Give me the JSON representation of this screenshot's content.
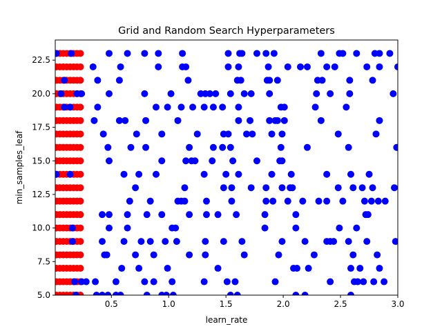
{
  "chart_data": {
    "type": "scatter",
    "title": "Grid and Random Search Hyperparameters",
    "xlabel": "learn_rate",
    "ylabel": "min_samples_leaf",
    "xlim": [
      0.01,
      3.0
    ],
    "ylim": [
      5,
      24
    ],
    "xticks": [
      0.5,
      1.0,
      1.5,
      2.0,
      2.5,
      3.0
    ],
    "xtick_labels": [
      "0.5",
      "1.0",
      "1.5",
      "2.0",
      "2.5",
      "3.0"
    ],
    "yticks": [
      5.0,
      7.5,
      10.0,
      12.5,
      15.0,
      17.5,
      20.0,
      22.5
    ],
    "ytick_labels": [
      "5.0",
      "7.5",
      "10.0",
      "12.5",
      "15.0",
      "17.5",
      "20.0",
      "22.5"
    ],
    "grid": false,
    "legend": "none",
    "series": [
      {
        "color": "#ff0000",
        "grid_x": [
          0.02,
          0.05,
          0.08,
          0.11,
          0.14,
          0.17,
          0.2,
          0.23
        ],
        "grid_y": [
          5,
          6,
          7,
          8,
          9,
          10,
          11,
          12,
          13,
          14,
          15,
          16,
          17,
          18,
          19,
          20,
          21,
          22,
          23
        ]
      },
      {
        "color": "#0000ff",
        "points": [
          [
            0.02,
            23
          ],
          [
            0.15,
            23
          ],
          [
            0.48,
            23
          ],
          [
            0.64,
            23
          ],
          [
            0.79,
            23
          ],
          [
            0.91,
            23
          ],
          [
            1.12,
            23
          ],
          [
            1.52,
            23
          ],
          [
            1.62,
            23
          ],
          [
            1.64,
            23
          ],
          [
            1.77,
            23
          ],
          [
            1.85,
            23
          ],
          [
            1.92,
            23
          ],
          [
            2.33,
            23
          ],
          [
            2.49,
            23
          ],
          [
            2.52,
            23
          ],
          [
            2.64,
            23
          ],
          [
            2.8,
            23
          ],
          [
            2.84,
            23
          ],
          [
            2.93,
            23
          ],
          [
            0.34,
            22
          ],
          [
            0.58,
            22
          ],
          [
            0.91,
            22
          ],
          [
            1.12,
            22
          ],
          [
            1.15,
            22
          ],
          [
            1.52,
            22
          ],
          [
            1.61,
            22
          ],
          [
            1.87,
            22
          ],
          [
            2.04,
            22
          ],
          [
            2.15,
            22
          ],
          [
            2.21,
            22
          ],
          [
            2.38,
            22
          ],
          [
            2.45,
            22
          ],
          [
            2.73,
            22
          ],
          [
            2.84,
            22
          ],
          [
            3.0,
            22
          ],
          [
            0.09,
            21
          ],
          [
            0.38,
            21
          ],
          [
            0.57,
            21
          ],
          [
            1.17,
            21
          ],
          [
            1.6,
            21
          ],
          [
            1.63,
            21
          ],
          [
            1.86,
            21
          ],
          [
            1.88,
            21
          ],
          [
            1.95,
            21
          ],
          [
            2.3,
            21
          ],
          [
            2.34,
            21
          ],
          [
            2.58,
            21
          ],
          [
            2.78,
            21
          ],
          [
            0.06,
            20
          ],
          [
            0.2,
            20
          ],
          [
            0.24,
            20
          ],
          [
            0.48,
            20
          ],
          [
            0.79,
            20
          ],
          [
            1.02,
            20
          ],
          [
            1.28,
            20
          ],
          [
            1.32,
            20
          ],
          [
            1.36,
            20
          ],
          [
            1.41,
            20
          ],
          [
            1.54,
            20
          ],
          [
            1.66,
            20
          ],
          [
            1.72,
            20
          ],
          [
            1.88,
            20
          ],
          [
            2.29,
            20
          ],
          [
            2.41,
            20
          ],
          [
            2.58,
            20
          ],
          [
            2.96,
            20
          ],
          [
            0.09,
            19
          ],
          [
            0.14,
            19
          ],
          [
            0.38,
            19
          ],
          [
            0.89,
            19
          ],
          [
            0.99,
            19
          ],
          [
            1.11,
            19
          ],
          [
            1.21,
            19
          ],
          [
            1.31,
            19
          ],
          [
            1.39,
            19
          ],
          [
            1.47,
            19
          ],
          [
            1.61,
            19
          ],
          [
            1.98,
            19
          ],
          [
            2.01,
            19
          ],
          [
            2.28,
            19
          ],
          [
            2.55,
            19
          ],
          [
            0.35,
            18
          ],
          [
            0.57,
            18
          ],
          [
            0.62,
            18
          ],
          [
            0.8,
            18
          ],
          [
            1.08,
            18
          ],
          [
            1.61,
            18
          ],
          [
            1.71,
            18
          ],
          [
            1.88,
            18
          ],
          [
            1.93,
            18
          ],
          [
            1.95,
            18
          ],
          [
            2.01,
            18
          ],
          [
            2.33,
            18
          ],
          [
            2.84,
            18
          ],
          [
            0.43,
            17
          ],
          [
            0.72,
            17
          ],
          [
            0.94,
            17
          ],
          [
            1.25,
            17
          ],
          [
            1.48,
            17
          ],
          [
            1.52,
            17
          ],
          [
            1.68,
            17
          ],
          [
            1.73,
            17
          ],
          [
            1.9,
            17
          ],
          [
            1.99,
            17
          ],
          [
            2.48,
            17
          ],
          [
            2.81,
            17
          ],
          [
            0.47,
            16
          ],
          [
            0.67,
            16
          ],
          [
            0.8,
            16
          ],
          [
            1.18,
            16
          ],
          [
            1.39,
            16
          ],
          [
            1.47,
            16
          ],
          [
            1.54,
            16
          ],
          [
            1.98,
            16
          ],
          [
            2.21,
            16
          ],
          [
            2.57,
            16
          ],
          [
            2.99,
            16
          ],
          [
            0.48,
            15
          ],
          [
            0.94,
            15
          ],
          [
            1.15,
            15
          ],
          [
            1.2,
            15
          ],
          [
            1.23,
            15
          ],
          [
            1.38,
            15
          ],
          [
            1.56,
            15
          ],
          [
            1.77,
            15
          ],
          [
            1.97,
            15
          ],
          [
            1.99,
            15
          ],
          [
            0.02,
            14
          ],
          [
            0.14,
            14
          ],
          [
            0.61,
            14
          ],
          [
            0.74,
            14
          ],
          [
            0.89,
            14
          ],
          [
            1.31,
            14
          ],
          [
            1.5,
            14
          ],
          [
            1.61,
            14
          ],
          [
            1.9,
            14
          ],
          [
            2.07,
            14
          ],
          [
            2.38,
            14
          ],
          [
            2.59,
            14
          ],
          [
            2.75,
            14
          ],
          [
            0.71,
            13
          ],
          [
            1.14,
            13
          ],
          [
            1.48,
            13
          ],
          [
            1.55,
            13
          ],
          [
            1.72,
            13
          ],
          [
            1.85,
            13
          ],
          [
            1.99,
            13
          ],
          [
            2.06,
            13
          ],
          [
            2.08,
            13
          ],
          [
            2.48,
            13
          ],
          [
            2.61,
            13
          ],
          [
            2.69,
            13
          ],
          [
            2.78,
            13
          ],
          [
            2.97,
            13
          ],
          [
            0.66,
            12
          ],
          [
            0.84,
            12
          ],
          [
            1.08,
            12
          ],
          [
            1.11,
            12
          ],
          [
            1.14,
            12
          ],
          [
            1.33,
            12
          ],
          [
            1.55,
            12
          ],
          [
            1.85,
            12
          ],
          [
            1.91,
            12
          ],
          [
            2.04,
            12
          ],
          [
            2.17,
            12
          ],
          [
            2.31,
            12
          ],
          [
            2.38,
            12
          ],
          [
            2.52,
            12
          ],
          [
            2.71,
            12
          ],
          [
            2.77,
            12
          ],
          [
            2.83,
            12
          ],
          [
            2.89,
            12
          ],
          [
            0.42,
            11
          ],
          [
            0.48,
            11
          ],
          [
            0.64,
            11
          ],
          [
            0.81,
            11
          ],
          [
            0.94,
            11
          ],
          [
            1.18,
            11
          ],
          [
            1.33,
            11
          ],
          [
            1.43,
            11
          ],
          [
            1.59,
            11
          ],
          [
            1.84,
            11
          ],
          [
            2.11,
            11
          ],
          [
            2.72,
            11
          ],
          [
            2.74,
            11
          ],
          [
            0.16,
            10
          ],
          [
            0.48,
            10
          ],
          [
            0.64,
            10
          ],
          [
            1.03,
            10
          ],
          [
            1.06,
            10
          ],
          [
            1.84,
            10
          ],
          [
            2.11,
            10
          ],
          [
            2.49,
            10
          ],
          [
            2.64,
            10
          ],
          [
            0.16,
            9
          ],
          [
            0.42,
            9
          ],
          [
            0.61,
            9
          ],
          [
            0.76,
            9
          ],
          [
            0.84,
            9
          ],
          [
            0.97,
            9
          ],
          [
            1.07,
            9
          ],
          [
            1.32,
            9
          ],
          [
            1.48,
            9
          ],
          [
            1.64,
            9
          ],
          [
            1.99,
            9
          ],
          [
            2.19,
            9
          ],
          [
            2.38,
            9
          ],
          [
            2.41,
            9
          ],
          [
            2.44,
            9
          ],
          [
            2.57,
            9
          ],
          [
            2.73,
            9
          ],
          [
            2.98,
            9
          ],
          [
            0.44,
            8
          ],
          [
            0.46,
            8
          ],
          [
            0.71,
            8
          ],
          [
            0.87,
            8
          ],
          [
            1.18,
            8
          ],
          [
            1.32,
            8
          ],
          [
            1.66,
            8
          ],
          [
            1.96,
            8
          ],
          [
            2.27,
            8
          ],
          [
            2.61,
            8
          ],
          [
            2.82,
            8
          ],
          [
            0.59,
            7
          ],
          [
            0.74,
            7
          ],
          [
            0.99,
            7
          ],
          [
            1.43,
            7
          ],
          [
            2.09,
            7
          ],
          [
            2.12,
            7
          ],
          [
            2.22,
            7
          ],
          [
            2.59,
            7
          ],
          [
            2.67,
            7
          ],
          [
            2.84,
            7
          ],
          [
            0.18,
            6
          ],
          [
            0.24,
            6
          ],
          [
            0.28,
            6
          ],
          [
            0.36,
            6
          ],
          [
            0.54,
            6
          ],
          [
            0.79,
            6
          ],
          [
            0.87,
            6
          ],
          [
            1.03,
            6
          ],
          [
            1.31,
            6
          ],
          [
            1.51,
            6
          ],
          [
            1.58,
            6
          ],
          [
            1.93,
            6
          ],
          [
            2.41,
            6
          ],
          [
            2.62,
            6
          ],
          [
            2.65,
            6
          ],
          [
            2.7,
            6
          ],
          [
            2.79,
            6
          ],
          [
            2.88,
            6
          ],
          [
            0.19,
            5
          ],
          [
            0.37,
            5
          ],
          [
            0.42,
            5
          ],
          [
            0.47,
            5
          ],
          [
            0.54,
            5
          ],
          [
            0.58,
            5
          ],
          [
            0.81,
            5
          ],
          [
            0.94,
            5
          ],
          [
            0.98,
            5
          ],
          [
            1.04,
            5
          ],
          [
            1.54,
            5
          ],
          [
            1.6,
            5
          ],
          [
            2.11,
            5
          ],
          [
            2.19,
            5
          ],
          [
            2.59,
            5
          ]
        ]
      }
    ]
  }
}
